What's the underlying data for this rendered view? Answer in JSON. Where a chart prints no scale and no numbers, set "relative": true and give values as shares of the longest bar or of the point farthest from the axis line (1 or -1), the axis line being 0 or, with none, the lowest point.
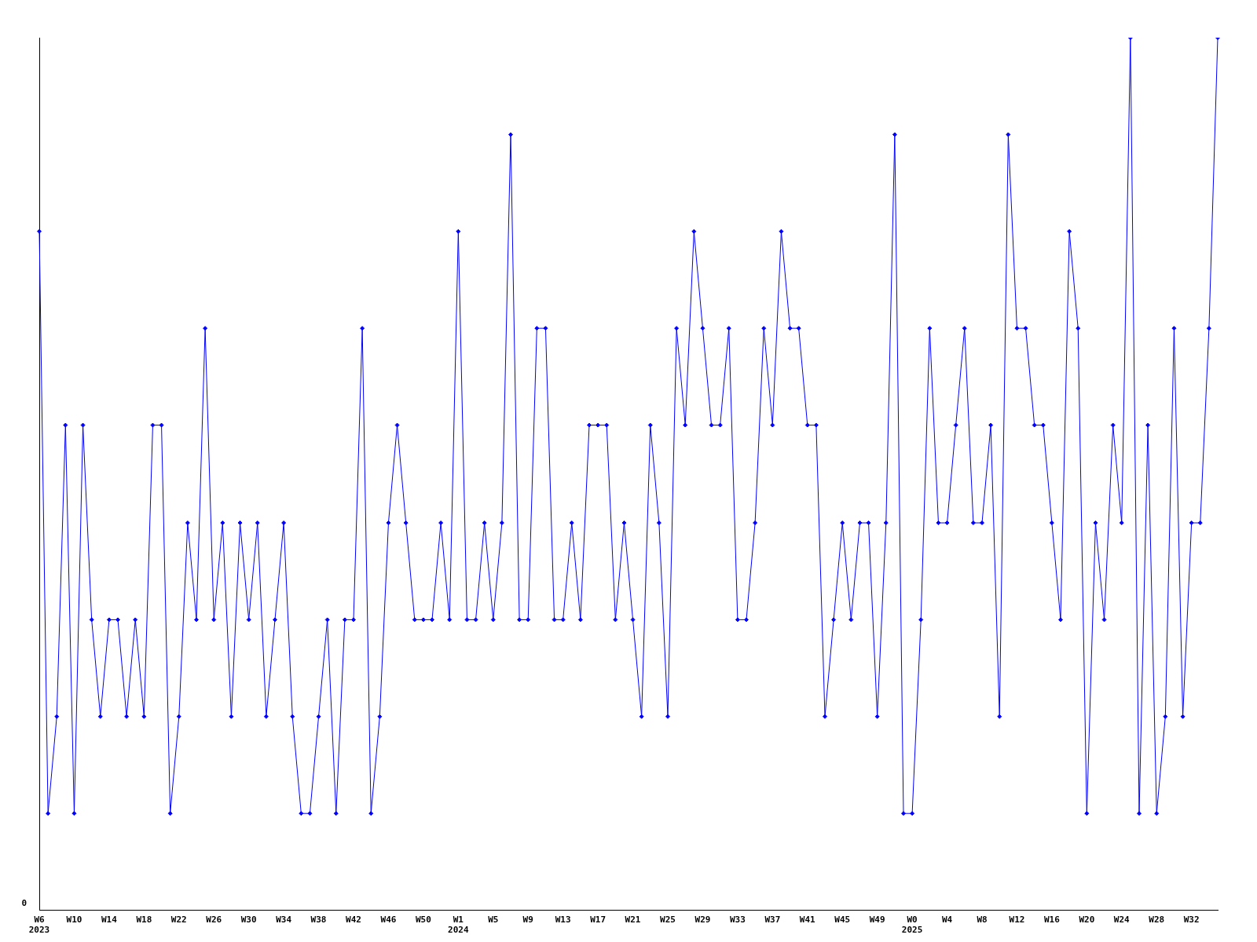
{
  "chart_data": {
    "type": "line",
    "relative": true,
    "marker": "diamond",
    "grid": false,
    "legend": false,
    "annotations": [
      "0"
    ],
    "categories": [
      "W6\n2023",
      null,
      null,
      null,
      "W10",
      null,
      null,
      null,
      "W14",
      null,
      null,
      null,
      "W18",
      null,
      null,
      null,
      "W22",
      null,
      null,
      null,
      "W26",
      null,
      null,
      null,
      "W30",
      null,
      null,
      null,
      "W34",
      null,
      null,
      null,
      "W38",
      null,
      null,
      null,
      "W42",
      null,
      null,
      null,
      "W46",
      null,
      null,
      null,
      "W50",
      null,
      null,
      null,
      "W1\n2024",
      null,
      null,
      null,
      "W5",
      null,
      null,
      null,
      "W9",
      null,
      null,
      null,
      "W13",
      null,
      null,
      null,
      "W17",
      null,
      null,
      null,
      "W21",
      null,
      null,
      null,
      "W25",
      null,
      null,
      null,
      "W29",
      null,
      null,
      null,
      "W33",
      null,
      null,
      null,
      "W37",
      null,
      null,
      null,
      "W41",
      null,
      null,
      null,
      "W45",
      null,
      null,
      null,
      "W49",
      null,
      null,
      null,
      "W0\n2025",
      null,
      null,
      null,
      "W4",
      null,
      null,
      null,
      "W8",
      null,
      null,
      null,
      "W12",
      null,
      null,
      null,
      "W16",
      null,
      null,
      null,
      "W20",
      null,
      null,
      null,
      "W24",
      null,
      null,
      null,
      "W28",
      null,
      null,
      null,
      "W32",
      null,
      null,
      null
    ],
    "series": [
      {
        "color": "#0000ff",
        "values": [
          0.778,
          0.111,
          0.222,
          0.556,
          0.111,
          0.556,
          0.333,
          0.222,
          0.333,
          0.333,
          0.222,
          0.333,
          0.222,
          0.556,
          0.556,
          0.111,
          0.222,
          0.444,
          0.333,
          0.667,
          0.333,
          0.444,
          0.222,
          0.444,
          0.333,
          0.444,
          0.222,
          0.333,
          0.444,
          0.222,
          0.111,
          0.111,
          0.222,
          0.333,
          0.111,
          0.333,
          0.333,
          0.667,
          0.111,
          0.222,
          0.444,
          0.556,
          0.444,
          0.333,
          0.333,
          0.333,
          0.444,
          0.333,
          0.778,
          0.333,
          0.333,
          0.444,
          0.333,
          0.444,
          0.889,
          0.333,
          0.333,
          0.667,
          0.667,
          0.333,
          0.333,
          0.444,
          0.333,
          0.556,
          0.556,
          0.556,
          0.333,
          0.444,
          0.333,
          0.222,
          0.556,
          0.444,
          0.222,
          0.667,
          0.556,
          0.778,
          0.667,
          0.556,
          0.556,
          0.667,
          0.333,
          0.333,
          0.444,
          0.667,
          0.556,
          0.778,
          0.667,
          0.667,
          0.556,
          0.556,
          0.222,
          0.333,
          0.444,
          0.333,
          0.444,
          0.444,
          0.222,
          0.444,
          0.889,
          0.111,
          0.111,
          0.333,
          0.667,
          0.444,
          0.444,
          0.556,
          0.667,
          0.444,
          0.444,
          0.556,
          0.222,
          0.889,
          0.667,
          0.667,
          0.556,
          0.556,
          0.444,
          0.333,
          0.778,
          0.667,
          0.111,
          0.444,
          0.333,
          0.556,
          0.444,
          1,
          0.111,
          0.556,
          0.111,
          0.222,
          0.667,
          0.222,
          0.444,
          0.444,
          0.667,
          1
        ]
      }
    ]
  }
}
